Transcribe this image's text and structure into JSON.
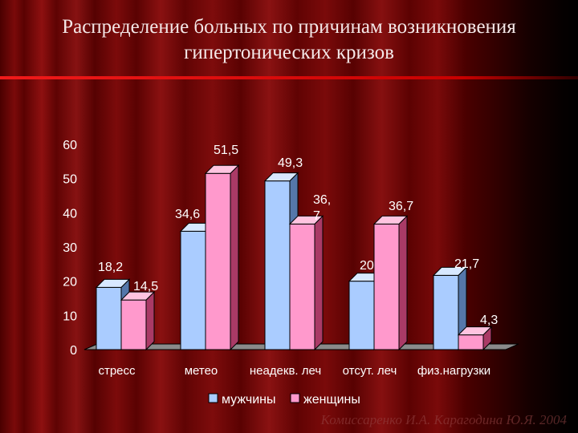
{
  "title_line1": "Распределение больных по причинам возникновения",
  "title_line2": "гипертонических кризов",
  "credit": "Комиссаренко И.А. Карагодина Ю.Я. 2004",
  "colors": {
    "men": "#aaccff",
    "women": "#ff99cc"
  },
  "chart_data": {
    "type": "bar",
    "categories": [
      "стресс",
      "метео",
      "неадекв. леч",
      "отсут. леч",
      "физ.нагрузки"
    ],
    "series": [
      {
        "name": "мужчины",
        "values": [
          18.2,
          34.6,
          49.3,
          20,
          21.7
        ],
        "labels": [
          "18,2",
          "34,6",
          "49,3",
          "20",
          "21,7"
        ]
      },
      {
        "name": "женщины",
        "values": [
          14.5,
          51.5,
          36.7,
          36.7,
          4.3
        ],
        "labels": [
          "14,5",
          "51,5",
          "36,\n7",
          "36,7",
          "4,3"
        ]
      }
    ],
    "yticks": [
      "0",
      "10",
      "20",
      "30",
      "40",
      "50",
      "60"
    ],
    "ylim": [
      0,
      60
    ],
    "grid": false,
    "legend_position": "bottom"
  }
}
